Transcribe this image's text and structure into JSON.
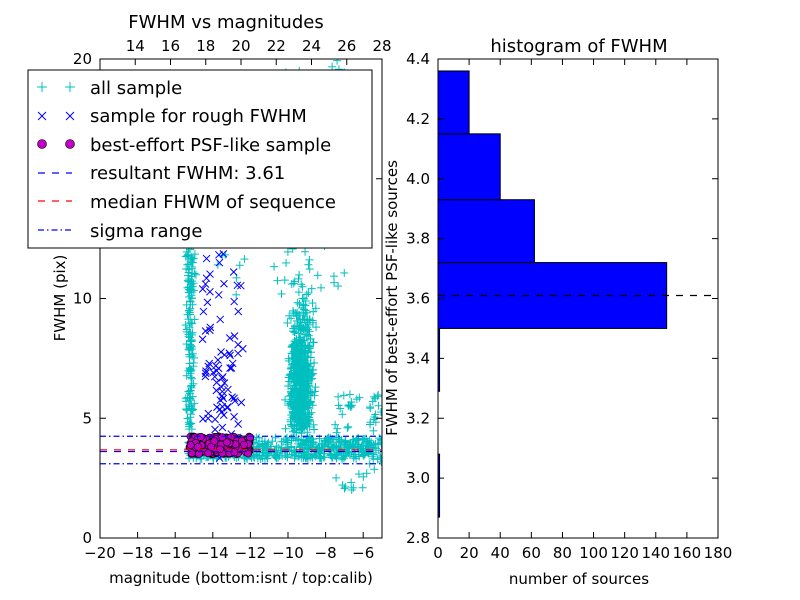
{
  "chart_data": [
    {
      "type": "scatter",
      "title": "FWHM vs magnitudes",
      "xlabel": "magnitude (bottom:isnt / top:calib)",
      "ylabel": "FWHM (pix)",
      "xlim": [
        -20,
        -5
      ],
      "ylim": [
        0,
        20
      ],
      "x_ticks": [
        "−20",
        "−18",
        "−16",
        "−14",
        "−12",
        "−10",
        "−8",
        "−6"
      ],
      "y_ticks": [
        "0",
        "5",
        "10",
        "15",
        "20"
      ],
      "top_xlim": [
        12,
        28
      ],
      "top_x_ticks": [
        "14",
        "16",
        "18",
        "20",
        "22",
        "24",
        "26",
        "28"
      ],
      "legend_position": "upper-left",
      "series": [
        {
          "name": "all sample",
          "marker": "+",
          "color": "#00bfbf"
        },
        {
          "name": "sample for rough FWHM",
          "marker": "x",
          "color": "#0000ff"
        },
        {
          "name": "best-effort PSF-like sample",
          "marker": "o",
          "color": "#bf00bf"
        }
      ],
      "lines": [
        {
          "name": "resultant FWHM: 3.61",
          "y": 3.61,
          "style": "dashed",
          "color": "#0000ff"
        },
        {
          "name": "median FHWM of sequence",
          "y": 3.68,
          "style": "dashed",
          "color": "#ff0000"
        },
        {
          "name": "sigma range",
          "y": [
            3.1,
            4.25
          ],
          "style": "dashdot",
          "color": "#0000ff"
        }
      ]
    },
    {
      "type": "bar",
      "orientation": "horizontal",
      "title": "histogram of FWHM",
      "xlabel": "number of sources",
      "ylabel": "FWHM of best-effort PSF-like sources",
      "xlim": [
        0,
        180
      ],
      "ylim": [
        2.8,
        4.4
      ],
      "x_ticks": [
        "0",
        "20",
        "40",
        "60",
        "80",
        "100",
        "120",
        "140",
        "160",
        "180"
      ],
      "y_ticks": [
        "2.8",
        "3.0",
        "3.2",
        "3.4",
        "3.6",
        "3.8",
        "4.0",
        "4.2",
        "4.4"
      ],
      "bins": [
        {
          "lo": 2.87,
          "hi": 3.08,
          "count": 1
        },
        {
          "lo": 3.08,
          "hi": 3.29,
          "count": 0
        },
        {
          "lo": 3.29,
          "hi": 3.5,
          "count": 1
        },
        {
          "lo": 3.5,
          "hi": 3.72,
          "count": 147
        },
        {
          "lo": 3.72,
          "hi": 3.93,
          "count": 62
        },
        {
          "lo": 3.93,
          "hi": 4.15,
          "count": 40
        },
        {
          "lo": 4.15,
          "hi": 4.36,
          "count": 20
        }
      ],
      "bar_color": "#0000ff",
      "reference_line": {
        "y": 3.61,
        "style": "dashed",
        "color": "#000000"
      }
    }
  ]
}
